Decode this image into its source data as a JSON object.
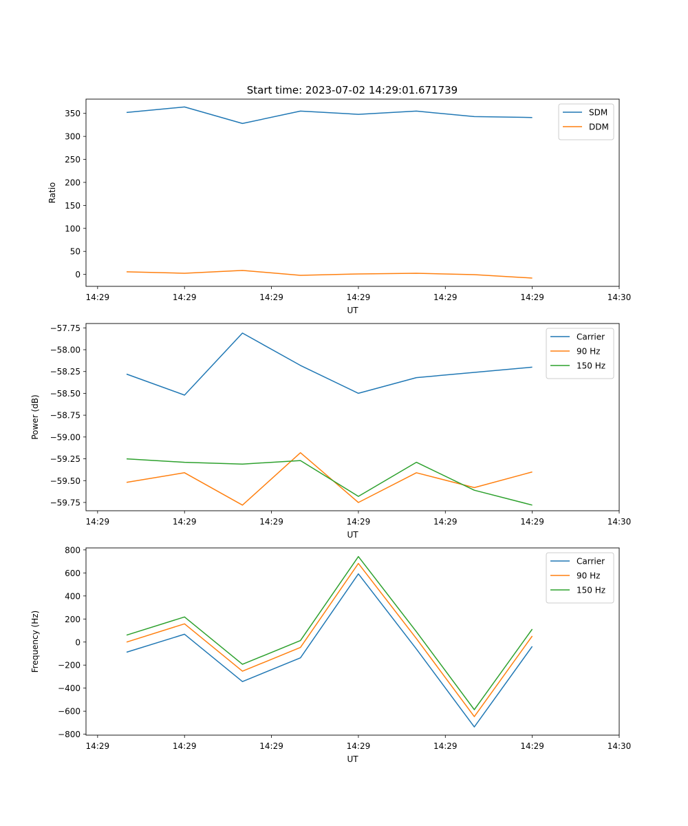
{
  "title": "Start time: 2023-07-02 14:29:01.671739",
  "colors": {
    "blue": "#1f77b4",
    "orange": "#ff7f0e",
    "green": "#2ca02c"
  },
  "chart_data": [
    {
      "type": "line",
      "xlabel": "UT",
      "ylabel": "Ratio",
      "xlim": [
        -0.2,
        9
      ],
      "x_ticks": [
        0,
        1.5,
        3,
        4.5,
        6,
        7.5,
        9
      ],
      "x_tick_labels": [
        "14:29",
        "14:29",
        "14:29",
        "14:29",
        "14:29",
        "14:29",
        "14:30"
      ],
      "ylim": [
        -26,
        381
      ],
      "y_ticks": [
        0,
        50,
        100,
        150,
        200,
        250,
        300,
        350
      ],
      "legend": "top-right",
      "x": [
        0.5,
        1.5,
        2.5,
        3.5,
        4.5,
        5.5,
        6.5,
        7.5
      ],
      "series": [
        {
          "name": "SDM",
          "color": "blue",
          "values": [
            352,
            364,
            328,
            355,
            348,
            355,
            343,
            341
          ]
        },
        {
          "name": "DDM",
          "color": "orange",
          "values": [
            5.5,
            2.5,
            8.5,
            -2,
            1,
            2.5,
            -0.5,
            -8
          ]
        }
      ]
    },
    {
      "type": "line",
      "xlabel": "UT",
      "ylabel": "Power (dB)",
      "xlim": [
        -0.2,
        9
      ],
      "x_ticks": [
        0,
        1.5,
        3,
        4.5,
        6,
        7.5,
        9
      ],
      "x_tick_labels": [
        "14:29",
        "14:29",
        "14:29",
        "14:29",
        "14:29",
        "14:29",
        "14:30"
      ],
      "ylim": [
        -59.845,
        -57.7
      ],
      "y_ticks": [
        -57.75,
        -58.0,
        -58.25,
        -58.5,
        -58.75,
        -59.0,
        -59.25,
        -59.5,
        -59.75
      ],
      "y_tick_labels": [
        "−57.75",
        "−58.00",
        "−58.25",
        "−58.50",
        "−58.75",
        "−59.00",
        "−59.25",
        "−59.50",
        "−59.75"
      ],
      "legend": "top-right",
      "x": [
        0.5,
        1.5,
        2.5,
        3.5,
        4.5,
        5.5,
        6.5,
        7.5
      ],
      "series": [
        {
          "name": "Carrier",
          "color": "blue",
          "values": [
            -58.28,
            -58.52,
            -57.81,
            -58.18,
            -58.5,
            -58.32,
            -58.26,
            -58.2
          ]
        },
        {
          "name": "90 Hz",
          "color": "orange",
          "values": [
            -59.52,
            -59.41,
            -59.78,
            -59.18,
            -59.75,
            -59.41,
            -59.58,
            -59.4
          ]
        },
        {
          "name": "150 Hz",
          "color": "green",
          "values": [
            -59.25,
            -59.29,
            -59.31,
            -59.27,
            -59.68,
            -59.29,
            -59.61,
            -59.78
          ]
        }
      ]
    },
    {
      "type": "line",
      "xlabel": "UT",
      "ylabel": "Frequency (Hz)",
      "xlim": [
        -0.2,
        9
      ],
      "x_ticks": [
        0,
        1.5,
        3,
        4.5,
        6,
        7.5,
        9
      ],
      "x_tick_labels": [
        "14:29",
        "14:29",
        "14:29",
        "14:29",
        "14:29",
        "14:29",
        "14:30"
      ],
      "ylim": [
        -808,
        817
      ],
      "y_ticks": [
        800,
        600,
        400,
        200,
        0,
        -200,
        -400,
        -600,
        -800
      ],
      "y_tick_labels": [
        "800",
        "600",
        "400",
        "200",
        "0",
        "−200",
        "−400",
        "−600",
        "−800"
      ],
      "legend": "top-right",
      "x": [
        0.5,
        1.5,
        2.5,
        3.5,
        4.5,
        5.5,
        6.5,
        7.5
      ],
      "series": [
        {
          "name": "Carrier",
          "color": "blue",
          "values": [
            -88,
            68,
            -343,
            -137,
            592,
            -60,
            -737,
            -38
          ]
        },
        {
          "name": "90 Hz",
          "color": "orange",
          "values": [
            0,
            158,
            -253,
            -47,
            682,
            30,
            -647,
            52
          ]
        },
        {
          "name": "150 Hz",
          "color": "green",
          "values": [
            60,
            218,
            -193,
            13,
            742,
            90,
            -587,
            112
          ]
        }
      ]
    }
  ]
}
